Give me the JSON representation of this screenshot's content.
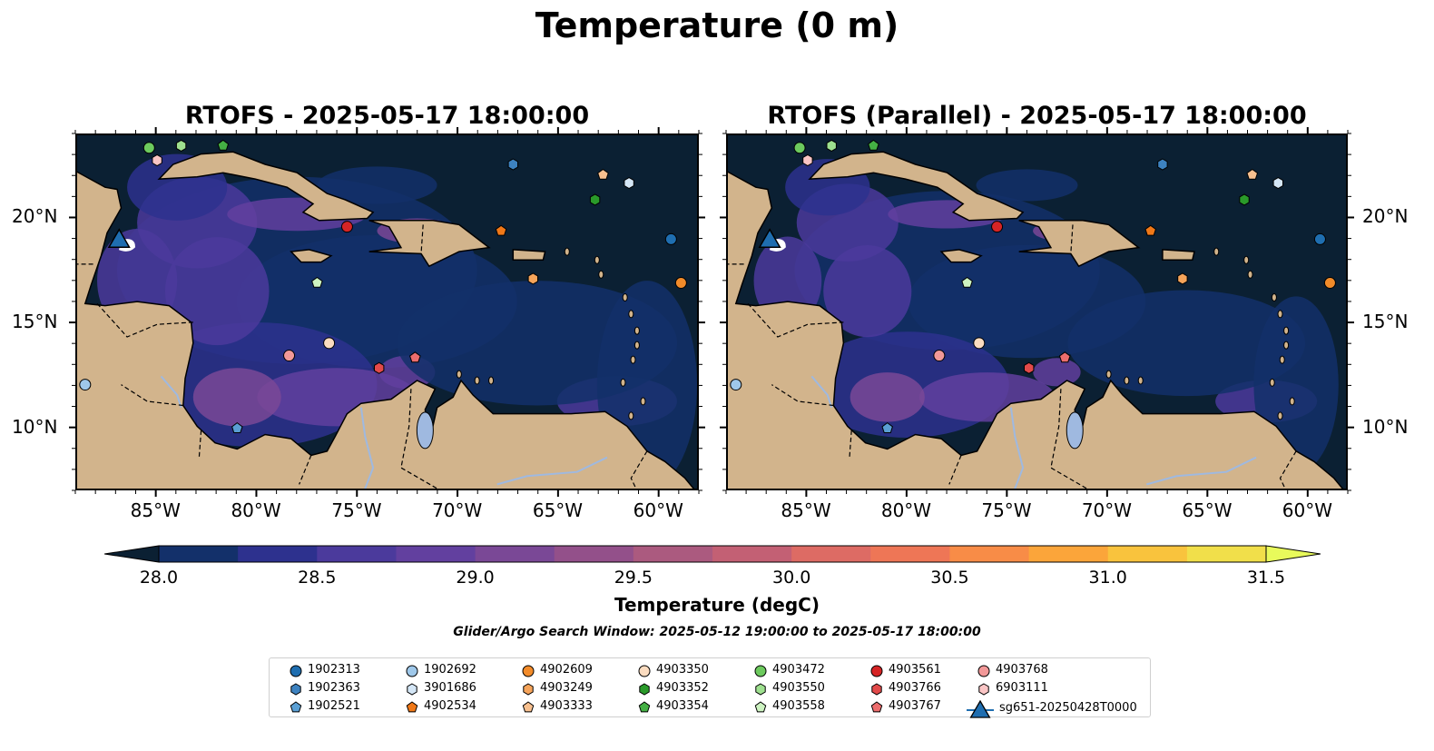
{
  "title": "Temperature (0 m)",
  "panels": [
    {
      "title": "RTOFS - 2025-05-17 18:00:00"
    },
    {
      "title": "RTOFS (Parallel) - 2025-05-17 18:00:00"
    }
  ],
  "map": {
    "lon_range": [
      -89,
      -58
    ],
    "lat_range": [
      7,
      24
    ],
    "lon_ticks": [
      -85,
      -80,
      -75,
      -70,
      -65,
      -60
    ],
    "lon_tick_labels": [
      "85°W",
      "80°W",
      "75°W",
      "70°W",
      "65°W",
      "60°W"
    ],
    "lat_ticks": [
      10,
      15,
      20
    ],
    "lat_tick_labels": [
      "10°N",
      "15°N",
      "20°N"
    ],
    "land_color": "#d2b48c",
    "ocean_color": "#0b2033"
  },
  "colorbar": {
    "label": "Temperature (degC)",
    "range": [
      28.0,
      31.5
    ],
    "ticks": [
      "28.0",
      "28.5",
      "29.0",
      "29.5",
      "30.0",
      "30.5",
      "31.0",
      "31.5"
    ],
    "colors": [
      "#0b2033",
      "#13306a",
      "#2d318e",
      "#4b3a9c",
      "#62409f",
      "#7a4896",
      "#93508a",
      "#ab5a7f",
      "#c36074",
      "#dd6b64",
      "#ee7656",
      "#f88c47",
      "#fba53a",
      "#f9c33d",
      "#f1df4a",
      "#e8fa5b"
    ]
  },
  "search_window": "Glider/Argo Search Window: 2025-05-12 19:00:00 to 2025-05-17 18:00:00",
  "floats": [
    {
      "id": "1902313",
      "marker": "circle",
      "color": "#1f6eb0",
      "lon": -59.3,
      "lat": 19.0
    },
    {
      "id": "1902363",
      "marker": "hexagon",
      "color": "#3d82c0",
      "lon": -67.2,
      "lat": 22.6
    },
    {
      "id": "1902521",
      "marker": "pentagon",
      "color": "#5a9fd4",
      "lon": -81.0,
      "lat": 9.9
    },
    {
      "id": "1902692",
      "marker": "circle",
      "color": "#9fc8ea",
      "lon": -88.6,
      "lat": 12.0
    },
    {
      "id": "3901686",
      "marker": "hexagon",
      "color": "#d4e6f6",
      "lon": -61.4,
      "lat": 21.7
    },
    {
      "id": "4902534",
      "marker": "pentagon",
      "color": "#f07818",
      "lon": -67.8,
      "lat": 19.4
    },
    {
      "id": "4902609",
      "marker": "circle",
      "color": "#f28b2a",
      "lon": -58.8,
      "lat": 16.9
    },
    {
      "id": "4903249",
      "marker": "hexagon",
      "color": "#f6a45a",
      "lon": -66.2,
      "lat": 17.1
    },
    {
      "id": "4903333",
      "marker": "pentagon",
      "color": "#f8c08f",
      "lon": -62.7,
      "lat": 22.1
    },
    {
      "id": "4903350",
      "marker": "circle",
      "color": "#fbdcc0",
      "lon": -76.4,
      "lat": 14.0
    },
    {
      "id": "4903352",
      "marker": "hexagon",
      "color": "#2a9a2a",
      "lon": -63.1,
      "lat": 20.9
    },
    {
      "id": "4903354",
      "marker": "pentagon",
      "color": "#44b044",
      "lon": -81.7,
      "lat": 23.5
    },
    {
      "id": "4903472",
      "marker": "circle",
      "color": "#6dca5e",
      "lon": -85.4,
      "lat": 23.4
    },
    {
      "id": "4903550",
      "marker": "hexagon",
      "color": "#9ee08f",
      "lon": -83.8,
      "lat": 23.5
    },
    {
      "id": "4903558",
      "marker": "pentagon",
      "color": "#cdf3c1",
      "lon": -77.0,
      "lat": 16.9
    },
    {
      "id": "4903561",
      "marker": "circle",
      "color": "#d62425",
      "lon": -75.5,
      "lat": 19.6
    },
    {
      "id": "4903766",
      "marker": "hexagon",
      "color": "#e24a4a",
      "lon": -73.9,
      "lat": 12.8
    },
    {
      "id": "4903767",
      "marker": "pentagon",
      "color": "#ec6d6d",
      "lon": -72.1,
      "lat": 13.3
    },
    {
      "id": "4903768",
      "marker": "circle",
      "color": "#f29898",
      "lon": -78.4,
      "lat": 13.4
    },
    {
      "id": "6903111",
      "marker": "hexagon",
      "color": "#fac5c5",
      "lon": -85.0,
      "lat": 22.8
    },
    {
      "id": "sg651-20250428T0000",
      "marker": "triangle",
      "color": "#1f6eb0",
      "lon": -86.9,
      "lat": 18.9
    }
  ],
  "legend_labels": [
    "1902313",
    "1902363",
    "1902521",
    "1902692",
    "3901686",
    "4902534",
    "4902609",
    "4903249",
    "4903333",
    "4903350",
    "4903352",
    "4903354",
    "4903472",
    "4903550",
    "4903558",
    "4903561",
    "4903766",
    "4903767",
    "4903768",
    "6903111",
    "sg651-20250428T0000"
  ]
}
